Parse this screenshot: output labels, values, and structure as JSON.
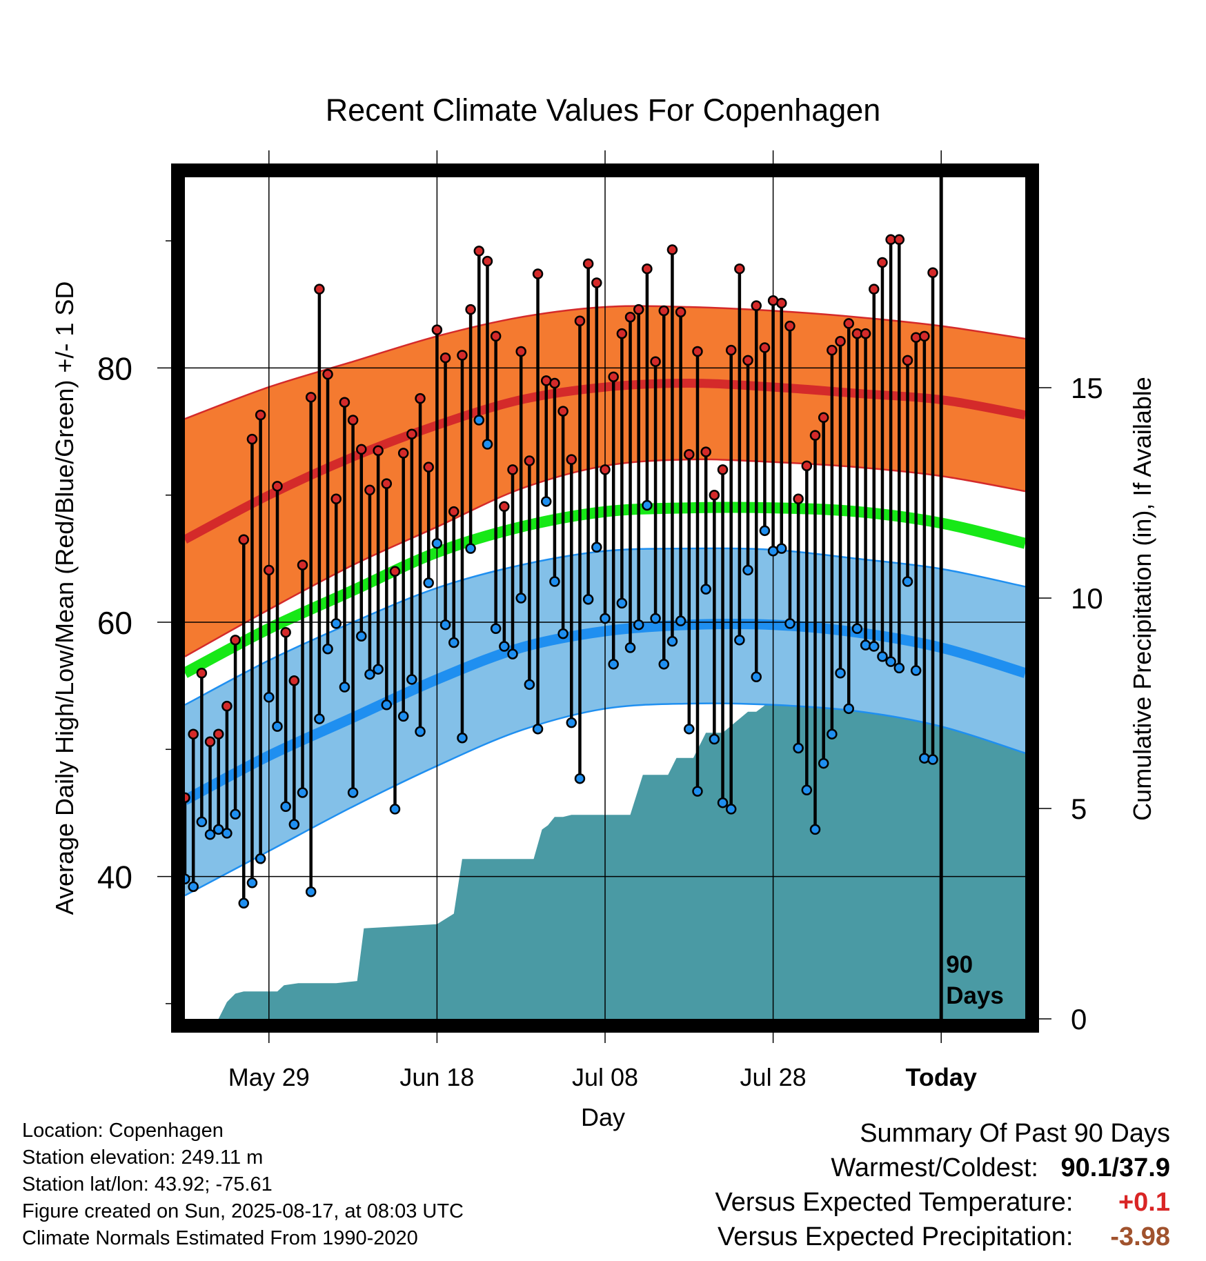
{
  "chart_data": {
    "type": "line",
    "title": "Recent Climate Values For Copenhagen",
    "xlabel": "Day",
    "ylabel_left": "Average Daily High/Low/Mean (Red/Blue/Green) +/- 1 SD",
    "ylabel_right": "Cumulative Precipitation (in), If Available",
    "y_ticks_left": [
      "40",
      "60",
      "80"
    ],
    "y_ticks_right": [
      "0",
      "5",
      "10",
      "15"
    ],
    "x_ticks": [
      "May 29",
      "Jun 18",
      "Jul 08",
      "Jul 28",
      "Today"
    ],
    "today_label": [
      "90",
      "Days"
    ],
    "xlim": [
      0,
      100
    ],
    "ylim_left": [
      28.8,
      95
    ],
    "ylim_right": [
      0,
      20
    ],
    "day_ticks": [
      10,
      30,
      50,
      70,
      90
    ],
    "normals": {
      "day": [
        0,
        10,
        20,
        30,
        40,
        50,
        60,
        70,
        80,
        90,
        100
      ],
      "mean_high": [
        66.5,
        70,
        73,
        75.5,
        77.5,
        78.5,
        78.8,
        78.5,
        78,
        77.5,
        76.3
      ],
      "high_sd_upper": [
        76,
        78.5,
        80.5,
        82.5,
        84,
        84.8,
        84.8,
        84.5,
        84,
        83.3,
        82.3
      ],
      "high_sd_lower": [
        57.3,
        61,
        64.5,
        67.5,
        70.5,
        72.3,
        72.8,
        72.6,
        72.2,
        71.5,
        70.3
      ],
      "mean": [
        56,
        59.5,
        62.5,
        65.5,
        67.5,
        68.7,
        69,
        69,
        68.7,
        67.8,
        66.2
      ],
      "mean_low": [
        46,
        49.5,
        52.5,
        55.5,
        58,
        59.3,
        59.8,
        59.8,
        59.2,
        58,
        56
      ],
      "low_sd_upper": [
        53.5,
        57,
        60,
        62.7,
        64.5,
        65.6,
        65.8,
        65.7,
        65,
        64.2,
        62.8
      ],
      "low_sd_lower": [
        38.5,
        42,
        45.5,
        48.7,
        51.5,
        53.2,
        53.6,
        53.5,
        53,
        51.8,
        49.7
      ]
    },
    "daily": {
      "day": [
        0,
        1,
        2,
        3,
        4,
        5,
        6,
        7,
        8,
        9,
        10,
        11,
        12,
        13,
        14,
        15,
        16,
        17,
        18,
        19,
        20,
        21,
        22,
        23,
        24,
        25,
        26,
        27,
        28,
        29,
        30,
        31,
        32,
        33,
        34,
        35,
        36,
        37,
        38,
        39,
        40,
        41,
        42,
        43,
        44,
        45,
        46,
        47,
        48,
        49,
        50,
        51,
        52,
        53,
        54,
        55,
        56,
        57,
        58,
        59,
        60,
        61,
        62,
        63,
        64,
        65,
        66,
        67,
        68,
        69,
        70,
        71,
        72,
        73,
        74,
        75,
        76,
        77,
        78,
        79,
        80,
        81,
        82,
        83,
        84,
        85,
        86,
        87,
        88,
        89
      ],
      "high": [
        46.2,
        51.2,
        56,
        50.6,
        51.2,
        53.4,
        58.6,
        66.5,
        74.4,
        76.3,
        64.1,
        70.7,
        59.2,
        55.4,
        64.5,
        77.7,
        86.2,
        79.5,
        69.7,
        77.3,
        75.9,
        73.6,
        70.4,
        73.5,
        70.9,
        64,
        73.3,
        74.8,
        77.6,
        72.2,
        83,
        80.8,
        68.7,
        81,
        84.6,
        89.2,
        88.4,
        82.5,
        69.1,
        72,
        81.3,
        72.7,
        87.4,
        79,
        78.8,
        76.6,
        72.8,
        83.7,
        88.2,
        86.7,
        72,
        79.3,
        82.7,
        84,
        84.6,
        87.8,
        80.5,
        84.5,
        89.3,
        84.4,
        73.2,
        81.3,
        73.4,
        70,
        72,
        81.4,
        87.8,
        80.6,
        84.9,
        81.6,
        85.3,
        85.1,
        83.3,
        69.7,
        72.3,
        74.7,
        76.1,
        81.4,
        82.1,
        83.5,
        82.7,
        82.7,
        86.2,
        88.3,
        90.1,
        90.1,
        80.6,
        82.4,
        82.5,
        87.5
      ],
      "low": [
        39.8,
        39.2,
        44.3,
        43.3,
        43.7,
        43.4,
        44.9,
        37.9,
        39.5,
        41.4,
        54.1,
        51.8,
        45.5,
        44.1,
        46.6,
        38.8,
        52.4,
        57.9,
        59.9,
        54.9,
        46.6,
        58.9,
        55.9,
        56.3,
        53.5,
        45.3,
        52.6,
        55.5,
        51.4,
        63.1,
        66.2,
        59.8,
        58.4,
        50.9,
        65.8,
        75.9,
        74,
        59.5,
        58.1,
        57.5,
        61.9,
        55.1,
        51.6,
        69.5,
        63.2,
        59.1,
        52.1,
        47.7,
        61.8,
        65.9,
        60.3,
        56.7,
        61.5,
        58,
        59.8,
        69.2,
        60.3,
        56.7,
        58.5,
        60.1,
        51.6,
        46.7,
        62.6,
        50.8,
        45.8,
        45.3,
        58.6,
        64.1,
        55.7,
        67.2,
        65.6,
        65.8,
        59.9,
        50.1,
        46.8,
        43.7,
        48.9,
        51.2,
        56,
        53.2,
        59.5,
        58.2,
        58.1,
        57.3,
        56.9,
        56.4,
        63.2,
        56.2,
        49.3,
        49.2
      ]
    },
    "precip_cumulative": {
      "day": [
        0,
        4,
        5,
        6,
        7,
        11,
        11.8,
        13.5,
        18,
        20.5,
        21.3,
        30,
        32,
        33,
        35,
        41.5,
        42.5,
        43.2,
        44,
        45,
        46,
        53,
        54.5,
        57.5,
        58.5,
        60.5,
        62,
        64,
        67,
        68,
        70,
        71,
        86,
        87,
        100
      ],
      "value": [
        0,
        0,
        0.4,
        0.6,
        0.65,
        0.65,
        0.8,
        0.85,
        0.85,
        0.9,
        2.15,
        2.25,
        2.5,
        3.8,
        3.8,
        3.8,
        4.5,
        4.6,
        4.8,
        4.8,
        4.85,
        4.85,
        5.8,
        5.8,
        6.2,
        6.2,
        6.8,
        6.8,
        7.3,
        7.3,
        7.6,
        7.6,
        7.6,
        7.65,
        7.65
      ]
    }
  },
  "footer": {
    "location": "Location: Copenhagen",
    "elevation": "Station elevation: 249.11 m",
    "latlon": "Station lat/lon: 43.92; -75.61",
    "created": "Figure created on Sun, 2025-08-17, at 08:03 UTC",
    "normals": "Climate Normals Estimated From 1990-2020"
  },
  "summary": {
    "title": "Summary Of Past 90 Days",
    "warm_cold_label": "Warmest/Coldest:",
    "warm_cold_value": "90.1/37.9",
    "temp_label": "Versus Expected Temperature:",
    "temp_value": "+0.1",
    "precip_label": "Versus Expected Precipitation:",
    "precip_value": "-3.98",
    "colors": {
      "temp": "#d92525",
      "precip": "#a0522d"
    }
  },
  "colors": {
    "high_band": "#f47a30",
    "high_line": "#d42a2a",
    "low_band": "#83c0e8",
    "low_line": "#1f8ff0",
    "mean_line": "#17e817",
    "precip_fill": "#4a9aa4",
    "high_dot": "#d42a2a",
    "low_dot": "#1f8ff0"
  }
}
